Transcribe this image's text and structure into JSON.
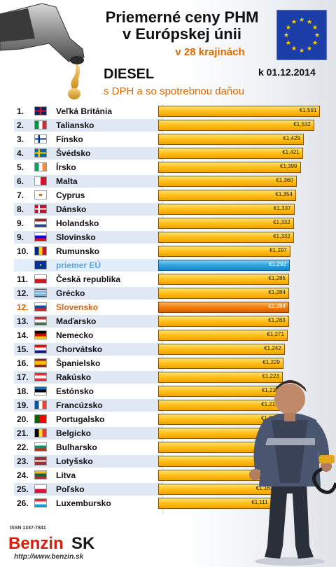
{
  "header": {
    "title_line1": "Priemerné ceny PHM",
    "title_line2": "v Európskej únii",
    "subtitle": "v 28 krajinách",
    "fuel": "DIESEL",
    "vat_note": "s DPH a so spotrebnou daňou",
    "date": "k 01.12.2014"
  },
  "footer": {
    "issn": "ISSN 1337-7841",
    "brand_main": "Benzin",
    "brand_suffix": "SK",
    "url": "http://www.benzin.sk"
  },
  "colors": {
    "bar": "#ffc21a",
    "eu_bar": "#2fa3dd",
    "sk_bar": "#f07f0c",
    "accent": "#e06a00"
  },
  "chart_data": {
    "type": "bar",
    "orientation": "horizontal",
    "unit": "€",
    "xlim": [
      0,
      1.65
    ],
    "rows": [
      {
        "rank": "1.",
        "country": "Veľká Británia",
        "label": "€1,591",
        "value": 1.591,
        "flag": "uk"
      },
      {
        "rank": "2.",
        "country": "Taliansko",
        "label": "€1,532",
        "value": 1.532,
        "flag": "it"
      },
      {
        "rank": "3.",
        "country": "Fínsko",
        "label": "€1,429",
        "value": 1.429,
        "flag": "fi"
      },
      {
        "rank": "4.",
        "country": "Švédsko",
        "label": "€1,421",
        "value": 1.421,
        "flag": "se"
      },
      {
        "rank": "5.",
        "country": "Írsko",
        "label": "€1,399",
        "value": 1.399,
        "flag": "ie"
      },
      {
        "rank": "6.",
        "country": "Malta",
        "label": "€1,360",
        "value": 1.36,
        "flag": "mt"
      },
      {
        "rank": "7.",
        "country": "Cyprus",
        "label": "€1,354",
        "value": 1.354,
        "flag": "cy"
      },
      {
        "rank": "8.",
        "country": "Dánsko",
        "label": "€1,337",
        "value": 1.337,
        "flag": "dk"
      },
      {
        "rank": "9.",
        "country": "Holandsko",
        "label": "€1,332",
        "value": 1.332,
        "flag": "nl"
      },
      {
        "rank": "9.",
        "country": "Slovinsko",
        "label": "€1,332",
        "value": 1.332,
        "flag": "si"
      },
      {
        "rank": "10.",
        "country": "Rumunsko",
        "label": "€1,297",
        "value": 1.297,
        "flag": "ro"
      },
      {
        "rank": "",
        "country": "priemer EÚ",
        "label": "€1,292",
        "value": 1.292,
        "flag": "eu",
        "kind": "eu"
      },
      {
        "rank": "11.",
        "country": "Česká republika",
        "label": "€1,285",
        "value": 1.285,
        "flag": "cz"
      },
      {
        "rank": "12.",
        "country": "Grécko",
        "label": "€1,284",
        "value": 1.284,
        "flag": "gr"
      },
      {
        "rank": "12.",
        "country": "Slovensko",
        "label": "€1,284",
        "value": 1.284,
        "flag": "sk",
        "kind": "sk"
      },
      {
        "rank": "13.",
        "country": "Maďarsko",
        "label": "€1,283",
        "value": 1.283,
        "flag": "hu"
      },
      {
        "rank": "14.",
        "country": "Nemecko",
        "label": "€1,271",
        "value": 1.271,
        "flag": "de"
      },
      {
        "rank": "15.",
        "country": "Chorvátsko",
        "label": "€1,242",
        "value": 1.242,
        "flag": "hr"
      },
      {
        "rank": "16.",
        "country": "Španielsko",
        "label": "€1,229",
        "value": 1.229,
        "flag": "es"
      },
      {
        "rank": "17.",
        "country": "Rakúsko",
        "label": "€1,223",
        "value": 1.223,
        "flag": "at"
      },
      {
        "rank": "18.",
        "country": "Estónsko",
        "label": "€1,219",
        "value": 1.219,
        "flag": "ee"
      },
      {
        "rank": "19.",
        "country": "Francúzsko",
        "label": "€1,214",
        "value": 1.214,
        "flag": "fr"
      },
      {
        "rank": "20.",
        "country": "Portugalsko",
        "label": "€1,212",
        "value": 1.212,
        "flag": "pt"
      },
      {
        "rank": "21.",
        "country": "Belgicko",
        "label": "€1,198",
        "value": 1.198,
        "flag": "be"
      },
      {
        "rank": "22.",
        "country": "Bulharsko",
        "label": "€1,195",
        "value": 1.195,
        "flag": "bg"
      },
      {
        "rank": "23.",
        "country": "Lotyšsko",
        "label": "€1,194",
        "value": 1.194,
        "flag": "lv"
      },
      {
        "rank": "24.",
        "country": "Litva",
        "label": "€1,190",
        "value": 1.19,
        "flag": "lt"
      },
      {
        "rank": "25.",
        "country": "Poľsko",
        "label": "€1,163",
        "value": 1.163,
        "flag": "pl"
      },
      {
        "rank": "26.",
        "country": "Luxembursko",
        "label": "€1,111",
        "value": 1.111,
        "flag": "lu"
      }
    ]
  }
}
